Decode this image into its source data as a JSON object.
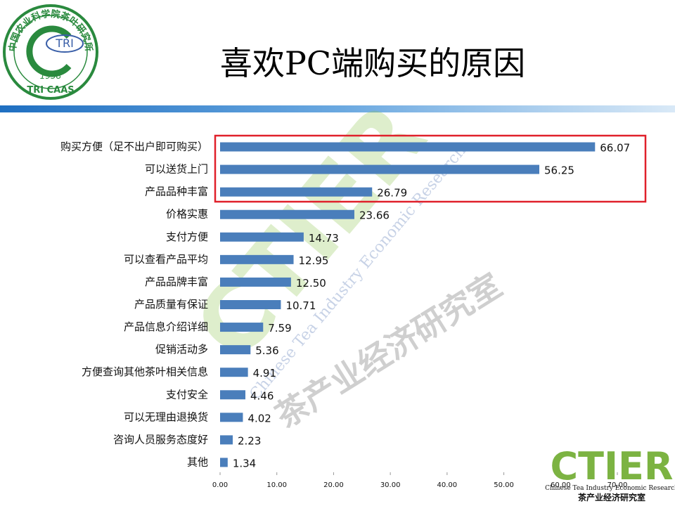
{
  "logo": {
    "name": "中国农业科学院茶叶研究所",
    "abbr": "TRI",
    "year": "1958",
    "caption": "TRI CAAS"
  },
  "chart_data": {
    "type": "hbar",
    "title": "喜欢PC端购买的原因",
    "categories": [
      "购买方便（足不出户即可购买）",
      "可以送货上门",
      "产品品种丰富",
      "价格实惠",
      "支付方便",
      "可以查看产品平均",
      "产品品牌丰富",
      "产品质量有保证",
      "产品信息介绍详细",
      "促销活动多",
      "方便查询其他茶叶相关信息",
      "支付安全",
      "可以无理由退换货",
      "咨询人员服务态度好",
      "其他"
    ],
    "values": [
      66.07,
      56.25,
      26.79,
      23.66,
      14.73,
      12.95,
      12.5,
      10.71,
      7.59,
      5.36,
      4.91,
      4.46,
      4.02,
      2.23,
      1.34
    ],
    "value_labels": [
      "66.07",
      "56.25",
      "26.79",
      "23.66",
      "14.73",
      "12.95",
      "12.50",
      "10.71",
      "7.59",
      "5.36",
      "4.91",
      "4.46",
      "4.02",
      "2.23",
      "1.34"
    ],
    "color": "#4a7ebb",
    "xlim": [
      0,
      70
    ],
    "xticks": [
      {
        "value": 0,
        "label": "0.00"
      },
      {
        "value": 10,
        "label": "10.00"
      },
      {
        "value": 20,
        "label": "20.00"
      },
      {
        "value": 30,
        "label": "30.00"
      },
      {
        "value": 40,
        "label": "40.00"
      },
      {
        "value": 50,
        "label": "50.00"
      },
      {
        "value": 60,
        "label": "60.00"
      },
      {
        "value": 70,
        "label": "70.00"
      }
    ],
    "grid": false
  },
  "watermark": {
    "brand": "CTIER",
    "english": "Chinese Tea Industry Economic Research",
    "chinese": "茶产业经济研究室"
  }
}
